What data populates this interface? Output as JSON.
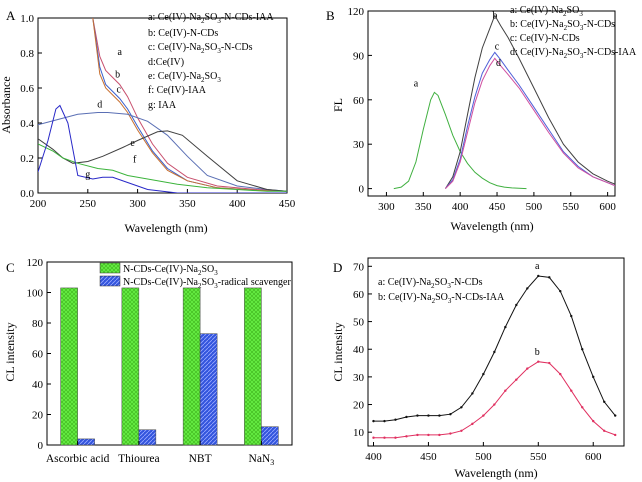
{
  "chart_data": [
    {
      "panel_label": "A",
      "type": "line",
      "xlabel": "Wavelength (nm)",
      "ylabel": "Absorbance",
      "xlim": [
        200,
        450
      ],
      "ylim": [
        0,
        1.0
      ],
      "xticks": [
        200,
        250,
        300,
        350,
        400,
        450
      ],
      "yticks": [
        0.0,
        0.2,
        0.4,
        0.6,
        0.8,
        1.0
      ],
      "legend": [
        "a: Ce(IV)-Na2SO3-N-CDs-IAA",
        "b: Ce(IV)-N-CDs",
        "c: Ce(IV)-Na2SO3-N-CDs",
        "d:Ce(IV)",
        "e: Ce(IV)-Na2SO3",
        "f: Ce(IV)-IAA",
        "g: IAA"
      ],
      "series": [
        {
          "name": "a",
          "color": "#c8506e",
          "x": [
            255,
            262,
            268,
            275,
            282,
            290,
            300,
            315,
            330,
            350,
            380,
            420,
            450
          ],
          "y": [
            1.0,
            0.78,
            0.7,
            0.66,
            0.62,
            0.55,
            0.43,
            0.28,
            0.17,
            0.09,
            0.04,
            0.02,
            0.01
          ]
        },
        {
          "name": "b",
          "color": "#3a5fcd",
          "x": [
            255,
            262,
            268,
            275,
            282,
            290,
            300,
            315,
            330,
            350,
            380,
            420,
            450
          ],
          "y": [
            1.0,
            0.72,
            0.62,
            0.58,
            0.54,
            0.48,
            0.38,
            0.24,
            0.14,
            0.07,
            0.03,
            0.015,
            0.01
          ]
        },
        {
          "name": "c",
          "color": "#c87030",
          "x": [
            255,
            262,
            268,
            275,
            282,
            290,
            300,
            315,
            330,
            350,
            380,
            420,
            450
          ],
          "y": [
            1.0,
            0.68,
            0.6,
            0.56,
            0.52,
            0.46,
            0.36,
            0.23,
            0.13,
            0.07,
            0.03,
            0.015,
            0.01
          ]
        },
        {
          "name": "d",
          "color": "#5a6fb4",
          "x": [
            200,
            220,
            240,
            260,
            270,
            290,
            310,
            330,
            350,
            370,
            400,
            430,
            450
          ],
          "y": [
            0.39,
            0.42,
            0.45,
            0.46,
            0.46,
            0.45,
            0.41,
            0.33,
            0.21,
            0.1,
            0.04,
            0.02,
            0.01
          ]
        },
        {
          "name": "e",
          "color": "#404040",
          "x": [
            200,
            215,
            225,
            235,
            250,
            265,
            285,
            300,
            320,
            330,
            345,
            370,
            400,
            430,
            450
          ],
          "y": [
            0.31,
            0.25,
            0.2,
            0.17,
            0.18,
            0.21,
            0.26,
            0.3,
            0.35,
            0.355,
            0.33,
            0.21,
            0.07,
            0.02,
            0.01
          ]
        },
        {
          "name": "f",
          "color": "#3cb43c",
          "x": [
            200,
            215,
            225,
            240,
            260,
            275,
            290,
            310,
            340,
            370,
            400,
            430,
            450
          ],
          "y": [
            0.28,
            0.24,
            0.2,
            0.17,
            0.14,
            0.13,
            0.1,
            0.08,
            0.05,
            0.03,
            0.02,
            0.01,
            0.01
          ]
        },
        {
          "name": "g",
          "color": "#2828c8",
          "x": [
            200,
            210,
            218,
            222,
            230,
            240,
            255,
            265,
            275,
            290,
            310,
            340,
            400,
            450
          ],
          "y": [
            0.12,
            0.3,
            0.48,
            0.5,
            0.4,
            0.1,
            0.08,
            0.09,
            0.09,
            0.06,
            0.02,
            0.0,
            0.0,
            0.0
          ]
        }
      ],
      "curve_labels": [
        {
          "text": "a",
          "x": 282,
          "y": 0.79
        },
        {
          "text": "b",
          "x": 280,
          "y": 0.66
        },
        {
          "text": "c",
          "x": 281,
          "y": 0.575
        },
        {
          "text": "d",
          "x": 262,
          "y": 0.49
        },
        {
          "text": "e",
          "x": 295,
          "y": 0.27
        },
        {
          "text": "f",
          "x": 297,
          "y": 0.175
        },
        {
          "text": "g",
          "x": 250,
          "y": 0.09
        }
      ]
    },
    {
      "panel_label": "B",
      "type": "line",
      "xlabel": "Wavelength (nm)",
      "ylabel": "FL",
      "xlim": [
        275,
        610
      ],
      "ylim": [
        -5,
        120
      ],
      "xticks": [
        300,
        350,
        400,
        450,
        500,
        550,
        600
      ],
      "yticks": [
        0,
        30,
        60,
        90,
        120
      ],
      "legend": [
        "a: Ce(IV)-Na2SO3",
        "b: Ce(IV)-Na2SO3-N-CDs",
        "c: Ce(IV)-N-CDs",
        "d: Ce(IV)-Na2SO3-N-CDs-IAA"
      ],
      "series": [
        {
          "name": "a",
          "color": "#40b040",
          "x": [
            310,
            320,
            330,
            340,
            350,
            360,
            365,
            370,
            380,
            390,
            400,
            410,
            420,
            430,
            440,
            450,
            460,
            470,
            480,
            490
          ],
          "y": [
            0,
            1,
            5,
            18,
            40,
            60,
            65,
            63,
            50,
            36,
            25,
            17,
            11,
            7,
            4,
            2,
            1,
            0.5,
            0.2,
            0
          ]
        },
        {
          "name": "b",
          "color": "#404040",
          "x": [
            380,
            390,
            400,
            410,
            420,
            430,
            440,
            447,
            455,
            465,
            480,
            500,
            520,
            540,
            560,
            580,
            600,
            610
          ],
          "y": [
            0,
            8,
            25,
            50,
            75,
            95,
            108,
            117,
            110,
            102,
            88,
            68,
            48,
            30,
            18,
            10,
            5,
            3
          ]
        },
        {
          "name": "c",
          "color": "#5060d8",
          "x": [
            380,
            390,
            400,
            410,
            420,
            430,
            440,
            447,
            455,
            465,
            480,
            500,
            520,
            540,
            560,
            580,
            600,
            610
          ],
          "y": [
            0,
            6,
            20,
            42,
            62,
            78,
            87,
            92,
            87,
            80,
            70,
            55,
            40,
            25,
            15,
            8,
            4,
            2
          ]
        },
        {
          "name": "d",
          "color": "#d050a0",
          "x": [
            380,
            390,
            400,
            410,
            420,
            430,
            440,
            447,
            455,
            465,
            480,
            500,
            520,
            540,
            560,
            580,
            600,
            610
          ],
          "y": [
            0,
            5,
            18,
            38,
            58,
            73,
            83,
            88,
            83,
            77,
            68,
            53,
            38,
            24,
            14,
            8,
            4,
            2
          ]
        }
      ],
      "curve_labels": [
        {
          "text": "a",
          "x": 340,
          "y": 69
        },
        {
          "text": "b",
          "x": 447,
          "y": 115
        },
        {
          "text": "c",
          "x": 450,
          "y": 94
        },
        {
          "text": "d",
          "x": 452,
          "y": 83
        }
      ]
    },
    {
      "panel_label": "C",
      "type": "bar",
      "xlabel": "",
      "ylabel": "CL intensity",
      "ylim": [
        0,
        120
      ],
      "yticks": [
        0,
        20,
        40,
        60,
        80,
        100,
        120
      ],
      "categories": [
        "Ascorbic acid",
        "Thiourea",
        "NBT",
        "NaN3"
      ],
      "series": [
        {
          "name": "N-CDs-Ce(IV)-Na2SO3",
          "color": "#66ee44",
          "values": [
            103,
            103,
            103,
            103
          ]
        },
        {
          "name": "N-CDs-Ce(IV)-Na2SO3-radical scavenger",
          "color": "#3355dd",
          "values": [
            4,
            10,
            73,
            12
          ]
        }
      ]
    },
    {
      "panel_label": "D",
      "type": "line",
      "xlabel": "Wavelength (nm)",
      "ylabel": "CL intensity",
      "xlim": [
        395,
        628
      ],
      "ylim": [
        5,
        73
      ],
      "xticks": [
        400,
        450,
        500,
        550,
        600
      ],
      "yticks": [
        10,
        20,
        30,
        40,
        50,
        60,
        70
      ],
      "legend": [
        "a: Ce(IV)-Na2SO3-N-CDs",
        "b: Ce(IV)-Na2SO3-N-CDs-IAA"
      ],
      "series": [
        {
          "name": "a",
          "color": "#111111",
          "x": [
            400,
            410,
            420,
            430,
            440,
            450,
            460,
            470,
            480,
            490,
            500,
            510,
            520,
            530,
            540,
            550,
            560,
            570,
            580,
            590,
            600,
            610,
            620
          ],
          "y": [
            14,
            14,
            14.5,
            15.5,
            16,
            16,
            16,
            16.5,
            19,
            24,
            31,
            39,
            48,
            56,
            62,
            66.5,
            66,
            61,
            52,
            40,
            30,
            21,
            16
          ]
        },
        {
          "name": "b",
          "color": "#e03060",
          "x": [
            400,
            410,
            420,
            430,
            440,
            450,
            460,
            470,
            480,
            490,
            500,
            510,
            520,
            530,
            540,
            550,
            560,
            570,
            580,
            590,
            600,
            610,
            620
          ],
          "y": [
            8,
            8,
            8,
            8.5,
            9,
            9,
            9,
            9.5,
            10.5,
            13,
            16,
            20,
            25,
            29,
            33,
            35.5,
            35,
            31,
            25,
            19,
            14,
            10.5,
            9
          ]
        }
      ],
      "curve_labels": [
        {
          "text": "a",
          "x": 549,
          "y": 69
        },
        {
          "text": "b",
          "x": 549,
          "y": 38
        }
      ]
    }
  ]
}
